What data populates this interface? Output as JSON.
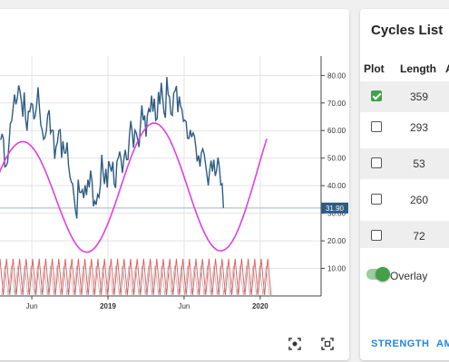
{
  "chart_data": {
    "type": "line",
    "x_ticks": [
      "Jun",
      "2019",
      "Jun",
      "2020"
    ],
    "y_ticks": [
      "10.00",
      "20.00",
      "30.00",
      "40.00",
      "50.00",
      "60.00",
      "70.00",
      "80.00"
    ],
    "ylim": [
      0,
      87
    ],
    "current_value_label": "31.90",
    "current_value": 31.9,
    "series": [
      {
        "color": "#2e5c85",
        "x_start": 2018.125,
        "x_step": 0.01,
        "values": [
          56.6,
          58.8,
          57.0,
          46.8,
          47.2,
          48.6,
          55.1,
          62.5,
          63.7,
          68.4,
          73.1,
          69.5,
          71.8,
          76.4,
          74.2,
          70.3,
          65.0,
          73.8,
          64.3,
          59.9,
          67.0,
          66.8,
          69.8,
          69.5,
          64.1,
          65.5,
          69.2,
          75.7,
          68.3,
          62.0,
          60.2,
          56.8,
          57.5,
          59.9,
          65.6,
          67.4,
          59.1,
          60.1,
          60.0,
          49.7,
          54.1,
          55.7,
          59.9,
          60.3,
          50.1,
          56.1,
          51.9,
          51.8,
          55.7,
          47.5,
          43.3,
          41.3,
          40.7,
          36.1,
          31.0,
          28.1,
          42.2,
          37.7,
          37.5,
          38.5,
          35.5,
          40.2,
          36.6,
          42.2,
          39.4,
          45.5,
          41.5,
          32.5,
          34.4,
          33.1,
          36.8,
          35.8,
          40.0,
          51.2,
          44.5,
          40.6,
          46.1,
          39.3,
          48.9,
          47.1,
          45.1,
          48.7,
          40.6,
          39.2,
          48.8,
          50.2,
          52.4,
          49.3,
          44.6,
          49.8,
          53.0,
          49.4,
          49.5,
          58.2,
          63.5,
          59.6,
          53.8,
          60.1,
          59.1,
          56.7,
          54.0,
          62.2,
          69.1,
          63.7,
          65.5,
          57.8,
          65.5,
          67.9,
          66.6,
          72.7,
          66.8,
          71.6,
          63.7,
          64.3,
          74.0,
          69.5,
          77.3,
          71.9,
          66.6,
          64.6,
          79.4,
          73.0,
          72.2,
          66.0,
          65.5,
          73.6,
          74.4,
          76.2,
          66.6,
          72.4,
          68.9,
          67.4,
          63.4,
          63.8,
          63.2,
          57.2,
          57.1,
          60.2,
          57.6,
          59.2,
          57.9,
          53.9,
          48.8,
          51.0,
          46.9,
          51.9,
          53.3,
          51.5,
          47.8,
          44.1,
          40.1,
          45.7,
          49.1,
          45.1,
          49.4,
          43.5,
          45.5,
          50.2,
          46.9,
          40.3,
          40.7,
          31.9
        ]
      },
      {
        "color": "#e040e0",
        "x_start": 2018.125,
        "x_step": 0.02,
        "values": [
          66.25,
          69.54,
          72.61,
          75.39,
          77.81,
          79.82,
          81.37,
          82.42,
          82.94,
          82.93,
          82.37,
          81.29,
          79.71,
          77.66,
          75.19,
          72.36,
          69.26,
          65.96,
          62.56,
          59.15,
          55.84,
          52.73,
          49.91,
          47.47,
          45.49,
          44.03,
          43.14,
          42.85,
          43.16,
          44.08,
          45.57,
          47.59,
          50.09,
          53.0,
          56.25,
          59.77,
          63.47,
          67.25,
          71.0,
          74.63,
          78.05,
          81.15,
          83.87,
          86.14,
          87.88,
          89.07,
          89.66,
          89.63,
          88.99,
          87.75,
          85.94,
          83.62,
          80.84,
          77.68,
          74.22,
          70.55,
          66.78,
          63.01,
          59.32,
          55.83,
          52.63,
          49.79,
          47.4,
          45.52,
          44.19,
          43.46,
          43.34,
          43.86,
          44.99,
          46.73,
          49.03,
          51.85,
          55.13,
          58.8,
          62.78,
          66.99,
          71.33,
          75.69,
          79.96,
          84.04
        ]
      },
      {
        "color": "#e54040",
        "x_start": 2018.125,
        "x_step": 0.01,
        "values": [
          0,
          0,
          0,
          0,
          0,
          0,
          0,
          0,
          0,
          0
        ]
      }
    ]
  },
  "panel": {
    "title": "Cycles List",
    "columns": {
      "plot": "Plot",
      "length": "Length",
      "extra": "A"
    },
    "rows": [
      {
        "checked": true,
        "length": "359"
      },
      {
        "checked": false,
        "length": "293"
      },
      {
        "checked": false,
        "length": "53"
      },
      {
        "checked": false,
        "length": "260"
      },
      {
        "checked": false,
        "length": "72"
      }
    ],
    "overlay": {
      "label": "Overlay",
      "on": true
    },
    "buttons": {
      "strength": "STRENGTH",
      "second": "AM"
    }
  },
  "toolbar": {
    "icon1": "screenshot-icon",
    "icon2": "fullscreen-icon"
  }
}
